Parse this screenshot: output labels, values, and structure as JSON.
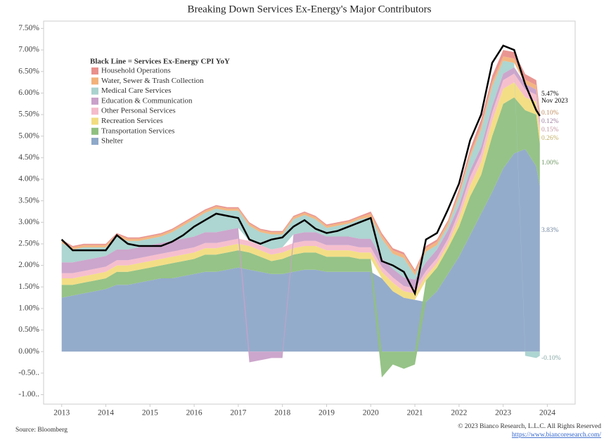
{
  "chart_data": {
    "type": "stacked-area",
    "title": "Breaking Down Services Ex-Energy's Major Contributors",
    "legend_title": "Black Line = Services Ex-Energy CPI YoY",
    "source": "Source: Bloomberg",
    "copyright": "© 2023 Bianco Research, L.L.C. All Rights Reserved",
    "url": "https://www.biancoresearch.com/",
    "x": [
      2013,
      2013.25,
      2013.5,
      2013.75,
      2014,
      2014.25,
      2014.5,
      2014.75,
      2015,
      2015.25,
      2015.5,
      2015.75,
      2016,
      2016.25,
      2016.5,
      2016.75,
      2017,
      2017.25,
      2017.5,
      2017.75,
      2018,
      2018.25,
      2018.5,
      2018.75,
      2019,
      2019.25,
      2019.5,
      2019.75,
      2020,
      2020.25,
      2020.5,
      2020.75,
      2021,
      2021.25,
      2021.5,
      2021.75,
      2022,
      2022.25,
      2022.5,
      2022.75,
      2023,
      2023.25,
      2023.5,
      2023.75,
      2023.83
    ],
    "xlim": [
      2012.59,
      2024.63
    ],
    "xticks": [
      2013,
      2014,
      2015,
      2016,
      2017,
      2018,
      2019,
      2020,
      2021,
      2022,
      2023,
      2024
    ],
    "ylim": [
      -1.22,
      7.67
    ],
    "yticks": [
      {
        "value": 7.5,
        "label": "7.50%"
      },
      {
        "value": 7,
        "label": "7.00%"
      },
      {
        "value": 6.5,
        "label": "6.50%"
      },
      {
        "value": 6,
        "label": "6.00%"
      },
      {
        "value": 5.5,
        "label": "5.50%"
      },
      {
        "value": 5,
        "label": "5.00%"
      },
      {
        "value": 4.5,
        "label": "4.50%"
      },
      {
        "value": 4,
        "label": "4.00%"
      },
      {
        "value": 3.5,
        "label": "3.50%"
      },
      {
        "value": 3,
        "label": "3.00%"
      },
      {
        "value": 2.5,
        "label": "2.50%"
      },
      {
        "value": 2,
        "label": "2.00%"
      },
      {
        "value": 1.5,
        "label": "1.50%"
      },
      {
        "value": 1,
        "label": "1.00%"
      },
      {
        "value": 0.5,
        "label": "0.50%"
      },
      {
        "value": 0,
        "label": "0.00%"
      },
      {
        "value": -0.5,
        "label": "-0.50.."
      },
      {
        "value": -1,
        "label": "-1.00.."
      }
    ],
    "series": [
      {
        "name": "Household Operations",
        "color": "#e8908c",
        "values": [
          0.03,
          0.03,
          0.03,
          0.03,
          0.03,
          0.03,
          0.03,
          0.03,
          0.03,
          0.03,
          0.03,
          0.03,
          0.03,
          0.03,
          0.03,
          0.03,
          0.03,
          0.03,
          0.03,
          0.03,
          0.03,
          0.03,
          0.03,
          0.03,
          0.03,
          0.03,
          0.03,
          0.03,
          0.05,
          0.05,
          0.05,
          0.05,
          0.05,
          0.05,
          0.05,
          0.05,
          0.1,
          0.12,
          0.15,
          0.15,
          0.15,
          0.15,
          0.13,
          0.12,
          0.11
        ]
      },
      {
        "name": "Water, Sewer & Trash Collection",
        "color": "#f2b27a",
        "values": [
          0.05,
          0.05,
          0.05,
          0.05,
          0.05,
          0.05,
          0.05,
          0.05,
          0.05,
          0.05,
          0.05,
          0.05,
          0.05,
          0.05,
          0.05,
          0.05,
          0.05,
          0.05,
          0.05,
          0.05,
          0.05,
          0.05,
          0.05,
          0.05,
          0.05,
          0.05,
          0.05,
          0.05,
          0.08,
          0.08,
          0.08,
          0.08,
          0.08,
          0.08,
          0.08,
          0.08,
          0.08,
          0.08,
          0.09,
          0.1,
          0.1,
          0.1,
          0.1,
          0.1,
          0.1
        ],
        "value_labels": [
          null,
          null,
          null,
          null,
          null,
          null,
          null,
          null,
          null,
          null,
          null,
          null,
          null,
          null,
          null,
          null,
          null,
          null,
          null,
          null,
          null,
          null,
          null,
          null,
          null,
          null,
          null,
          null,
          null,
          null,
          null,
          null,
          null,
          null,
          null,
          null,
          null,
          null,
          null,
          null,
          null,
          null,
          null,
          null,
          "0.10%"
        ]
      },
      {
        "name": "Medical Care Services",
        "color": "#a9d3cf",
        "values": [
          0.45,
          0.3,
          0.3,
          0.25,
          0.2,
          0.3,
          0.2,
          0.15,
          0.15,
          0.15,
          0.2,
          0.3,
          0.4,
          0.45,
          0.55,
          0.45,
          0.4,
          0.35,
          0.3,
          0.35,
          0.3,
          0.35,
          0.4,
          0.3,
          0.2,
          0.25,
          0.3,
          0.45,
          0.5,
          0.45,
          0.35,
          0.45,
          0.1,
          0.25,
          0.1,
          0.1,
          0.2,
          0.3,
          0.4,
          0.45,
          0.3,
          0.1,
          -0.1,
          -0.15,
          -0.1
        ],
        "value_labels": [
          null,
          null,
          null,
          null,
          null,
          null,
          null,
          null,
          null,
          null,
          null,
          null,
          null,
          null,
          null,
          null,
          null,
          null,
          null,
          null,
          null,
          null,
          null,
          null,
          null,
          null,
          null,
          null,
          null,
          null,
          null,
          null,
          null,
          null,
          null,
          null,
          null,
          null,
          null,
          null,
          null,
          null,
          null,
          null,
          "-0.10%"
        ]
      },
      {
        "name": "Education & Communication",
        "color": "#c9a1c9",
        "values": [
          0.25,
          0.25,
          0.25,
          0.25,
          0.25,
          0.25,
          0.25,
          0.25,
          0.25,
          0.25,
          0.25,
          0.25,
          0.25,
          0.25,
          0.25,
          0.25,
          0.25,
          -0.25,
          -0.2,
          -0.15,
          -0.15,
          0.2,
          0.2,
          0.2,
          0.2,
          0.2,
          0.2,
          0.2,
          0.2,
          0.2,
          0.2,
          0.2,
          0.2,
          0.2,
          0.2,
          0.2,
          0.15,
          0.15,
          0.15,
          0.15,
          0.15,
          0.15,
          0.13,
          0.12,
          0.12
        ],
        "value_labels": [
          null,
          null,
          null,
          null,
          null,
          null,
          null,
          null,
          null,
          null,
          null,
          null,
          null,
          null,
          null,
          null,
          null,
          null,
          null,
          null,
          null,
          null,
          null,
          null,
          null,
          null,
          null,
          null,
          null,
          null,
          null,
          null,
          null,
          null,
          null,
          null,
          null,
          null,
          null,
          null,
          null,
          null,
          null,
          null,
          "0.12%"
        ]
      },
      {
        "name": "Other Personal Services",
        "color": "#f5bccb",
        "values": [
          0.12,
          0.12,
          0.12,
          0.12,
          0.12,
          0.12,
          0.12,
          0.12,
          0.12,
          0.12,
          0.12,
          0.12,
          0.12,
          0.12,
          0.12,
          0.12,
          0.12,
          0.12,
          0.12,
          0.12,
          0.12,
          0.12,
          0.12,
          0.12,
          0.12,
          0.12,
          0.12,
          0.12,
          0.12,
          0.12,
          0.12,
          0.12,
          0.12,
          0.12,
          0.12,
          0.12,
          0.15,
          0.2,
          0.2,
          0.2,
          0.2,
          0.2,
          0.18,
          0.16,
          0.15
        ],
        "value_labels": [
          null,
          null,
          null,
          null,
          null,
          null,
          null,
          null,
          null,
          null,
          null,
          null,
          null,
          null,
          null,
          null,
          null,
          null,
          null,
          null,
          null,
          null,
          null,
          null,
          null,
          null,
          null,
          null,
          null,
          null,
          null,
          null,
          null,
          null,
          null,
          null,
          null,
          null,
          null,
          null,
          null,
          null,
          null,
          null,
          "0.15%"
        ]
      },
      {
        "name": "Recreation Services",
        "color": "#f2dc80",
        "values": [
          0.15,
          0.15,
          0.15,
          0.15,
          0.15,
          0.15,
          0.15,
          0.15,
          0.15,
          0.15,
          0.15,
          0.15,
          0.15,
          0.15,
          0.15,
          0.15,
          0.15,
          0.15,
          0.15,
          0.15,
          0.15,
          0.15,
          0.15,
          0.15,
          0.15,
          0.15,
          0.15,
          0.15,
          0.15,
          0.15,
          0.2,
          0.15,
          0.15,
          0.1,
          0.1,
          0.1,
          0.2,
          0.25,
          0.3,
          0.35,
          0.35,
          0.35,
          0.3,
          0.3,
          0.26
        ],
        "value_labels": [
          null,
          null,
          null,
          null,
          null,
          null,
          null,
          null,
          null,
          null,
          null,
          null,
          null,
          null,
          null,
          null,
          null,
          null,
          null,
          null,
          null,
          null,
          null,
          null,
          null,
          null,
          null,
          null,
          null,
          null,
          null,
          null,
          null,
          null,
          null,
          null,
          null,
          null,
          null,
          null,
          null,
          null,
          null,
          null,
          "0.26%"
        ]
      },
      {
        "name": "Transportation Services",
        "color": "#90c081",
        "values": [
          0.3,
          0.25,
          0.25,
          0.25,
          0.25,
          0.3,
          0.3,
          0.3,
          0.3,
          0.3,
          0.35,
          0.35,
          0.35,
          0.4,
          0.4,
          0.4,
          0.4,
          0.4,
          0.35,
          0.3,
          0.35,
          0.4,
          0.4,
          0.4,
          0.35,
          0.35,
          0.35,
          0.3,
          0.3,
          -0.6,
          -0.3,
          -0.4,
          -0.3,
          0.5,
          0.55,
          0.6,
          0.7,
          0.9,
          0.9,
          1.3,
          1.5,
          1.3,
          0.9,
          1.2,
          1.0
        ],
        "value_labels": [
          null,
          null,
          null,
          null,
          null,
          null,
          null,
          null,
          null,
          null,
          null,
          null,
          null,
          null,
          null,
          null,
          null,
          null,
          null,
          null,
          null,
          null,
          null,
          null,
          null,
          null,
          null,
          null,
          null,
          null,
          null,
          null,
          null,
          null,
          null,
          null,
          null,
          null,
          null,
          null,
          null,
          null,
          null,
          null,
          "1.00%"
        ]
      },
      {
        "name": "Shelter",
        "color": "#8ea8c8",
        "values": [
          1.25,
          1.3,
          1.35,
          1.4,
          1.45,
          1.55,
          1.55,
          1.6,
          1.65,
          1.7,
          1.7,
          1.75,
          1.8,
          1.85,
          1.85,
          1.9,
          1.95,
          1.9,
          1.85,
          1.8,
          1.8,
          1.85,
          1.9,
          1.9,
          1.85,
          1.85,
          1.85,
          1.85,
          1.85,
          1.7,
          1.4,
          1.25,
          1.2,
          1.15,
          1.4,
          1.8,
          2.2,
          2.7,
          3.2,
          3.7,
          4.25,
          4.6,
          4.7,
          4.3,
          3.83
        ],
        "value_labels": [
          null,
          null,
          null,
          null,
          null,
          null,
          null,
          null,
          null,
          null,
          null,
          null,
          null,
          null,
          null,
          null,
          null,
          null,
          null,
          null,
          null,
          null,
          null,
          null,
          null,
          null,
          null,
          null,
          null,
          null,
          null,
          null,
          null,
          null,
          null,
          null,
          null,
          null,
          null,
          null,
          null,
          null,
          null,
          null,
          "3.83%"
        ]
      }
    ],
    "line": {
      "color": "#000000",
      "values": [
        2.6,
        2.35,
        2.35,
        2.35,
        2.35,
        2.7,
        2.5,
        2.45,
        2.45,
        2.45,
        2.55,
        2.7,
        2.9,
        3.05,
        3.2,
        3.15,
        3.1,
        2.6,
        2.5,
        2.6,
        2.65,
        2.9,
        3.05,
        2.85,
        2.75,
        2.8,
        2.9,
        3.0,
        3.1,
        2.1,
        2.0,
        1.85,
        1.35,
        2.6,
        2.75,
        3.3,
        3.9,
        4.9,
        5.5,
        6.7,
        7.1,
        7.0,
        6.2,
        5.6,
        5.47
      ],
      "value_labels": [
        null,
        null,
        null,
        null,
        null,
        null,
        null,
        null,
        null,
        null,
        null,
        null,
        null,
        null,
        null,
        null,
        null,
        null,
        null,
        null,
        null,
        null,
        null,
        null,
        null,
        null,
        null,
        null,
        null,
        null,
        null,
        null,
        null,
        null,
        null,
        null,
        null,
        null,
        null,
        null,
        null,
        null,
        null,
        null,
        "5.47%"
      ],
      "annotation": "Nov 2023"
    }
  }
}
